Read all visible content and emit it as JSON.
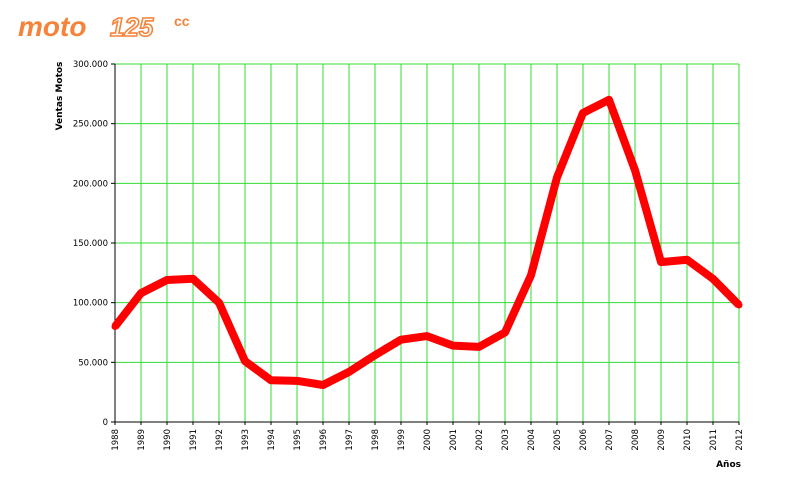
{
  "logo": {
    "text_main": "moto",
    "text_num": "125",
    "text_cc": "cc"
  },
  "colors": {
    "grid": "#33dd33",
    "line": "#ff0000",
    "logo": "#f5843a",
    "axis": "#000000"
  },
  "chart_data": {
    "type": "line",
    "title": "",
    "xlabel": "Años",
    "ylabel": "Ventas Motos",
    "x": [
      "1988",
      "1989",
      "1990",
      "1991",
      "1992",
      "1993",
      "1994",
      "1995",
      "1996",
      "1997",
      "1998",
      "1999",
      "2000",
      "2001",
      "2002",
      "2003",
      "2004",
      "2005",
      "2006",
      "2007",
      "2008",
      "2009",
      "2010",
      "2011",
      "2012"
    ],
    "series": [
      {
        "name": "",
        "values": [
          80000,
          108000,
          119000,
          120000,
          100000,
          51000,
          35000,
          34500,
          31000,
          42000,
          56000,
          69000,
          72000,
          64000,
          63000,
          75000,
          123000,
          205000,
          259000,
          270000,
          211000,
          134000,
          136000,
          120000,
          98000
        ]
      }
    ],
    "ylim": [
      0,
      300000
    ],
    "yticks": [
      0,
      50000,
      100000,
      150000,
      200000,
      250000,
      300000
    ],
    "ytick_labels": [
      "0",
      "50.000",
      "100.000",
      "150.000",
      "200.000",
      "250.000",
      "300.000"
    ],
    "grid": true,
    "legend": "none"
  }
}
